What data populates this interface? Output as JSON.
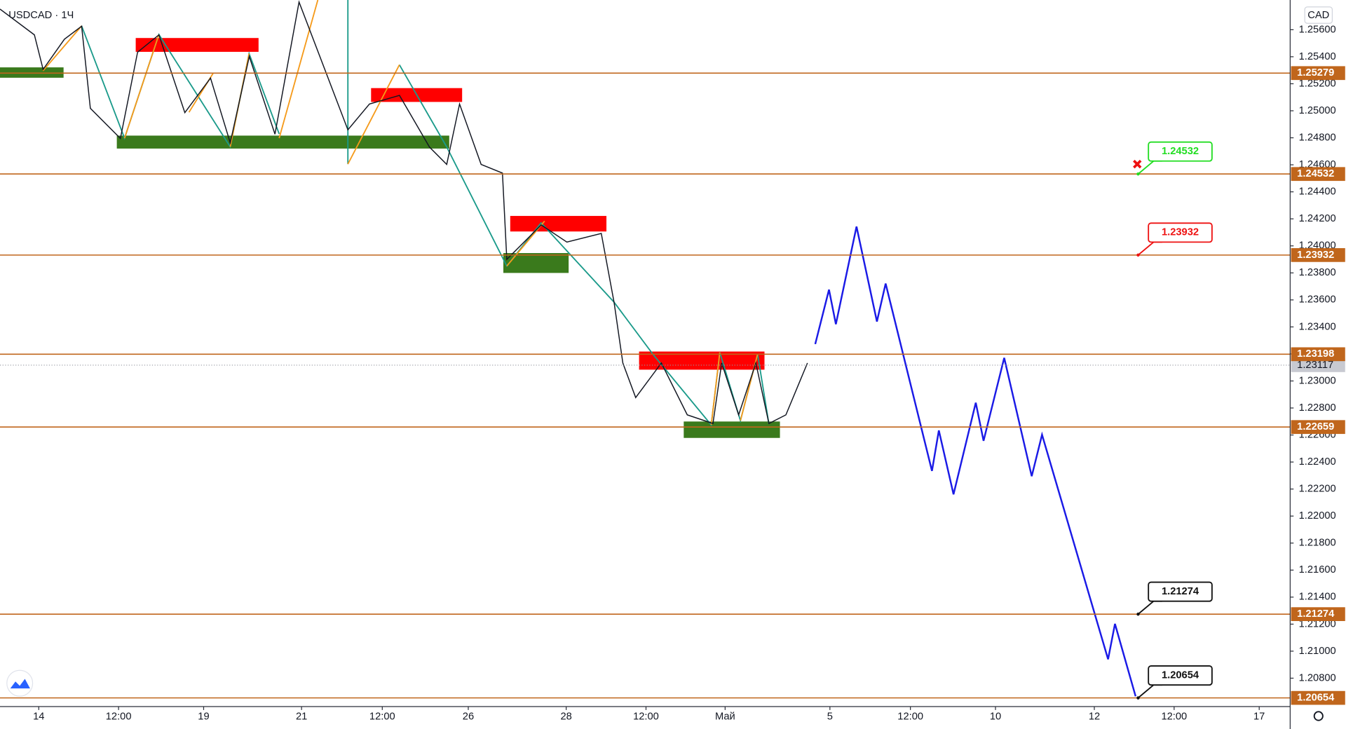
{
  "chart_data": {
    "type": "line",
    "title": "USDCAD · 1Ч",
    "currency": "CAD",
    "xlim": [
      -16.9,
      545.7
    ],
    "ylim": [
      1.2059,
      1.2582
    ],
    "xticks": [
      {
        "value": 0,
        "label": "14"
      },
      {
        "value": 34.8,
        "label": "12:00"
      },
      {
        "value": 71.9,
        "label": "19"
      },
      {
        "value": 114.6,
        "label": "21"
      },
      {
        "value": 149.8,
        "label": "12:00"
      },
      {
        "value": 187.3,
        "label": "26"
      },
      {
        "value": 230.0,
        "label": "28"
      },
      {
        "value": 264.8,
        "label": "12:00"
      },
      {
        "value": 299.3,
        "label": "Май"
      },
      {
        "value": 345.0,
        "label": "5"
      },
      {
        "value": 380.1,
        "label": "12:00"
      },
      {
        "value": 417.2,
        "label": "10"
      },
      {
        "value": 460.3,
        "label": "12"
      },
      {
        "value": 495.1,
        "label": "12:00"
      },
      {
        "value": 532.2,
        "label": "17"
      }
    ],
    "yticks": [
      {
        "value": 1.256,
        "label": "1.25600"
      },
      {
        "value": 1.254,
        "label": "1.25400"
      },
      {
        "value": 1.252,
        "label": "1.25200"
      },
      {
        "value": 1.25,
        "label": "1.25000"
      },
      {
        "value": 1.248,
        "label": "1.24800"
      },
      {
        "value": 1.246,
        "label": "1.24600"
      },
      {
        "value": 1.244,
        "label": "1.24400"
      },
      {
        "value": 1.242,
        "label": "1.24200"
      },
      {
        "value": 1.24,
        "label": "1.24000"
      },
      {
        "value": 1.238,
        "label": "1.23800"
      },
      {
        "value": 1.236,
        "label": "1.23600"
      },
      {
        "value": 1.234,
        "label": "1.23400"
      },
      {
        "value": 1.232,
        "label": "1.23200"
      },
      {
        "value": 1.23,
        "label": "1.23000"
      },
      {
        "value": 1.228,
        "label": "1.22800"
      },
      {
        "value": 1.226,
        "label": "1.22600"
      },
      {
        "value": 1.224,
        "label": "1.22400"
      },
      {
        "value": 1.222,
        "label": "1.22200"
      },
      {
        "value": 1.22,
        "label": "1.22000"
      },
      {
        "value": 1.218,
        "label": "1.21800"
      },
      {
        "value": 1.216,
        "label": "1.21600"
      },
      {
        "value": 1.214,
        "label": "1.21400"
      },
      {
        "value": 1.212,
        "label": "1.21200"
      },
      {
        "value": 1.21,
        "label": "1.21000"
      },
      {
        "value": 1.208,
        "label": "1.20800"
      }
    ],
    "price": {
      "color": "#131722",
      "x": [
        -16.9,
        -1.9,
        1.9,
        11.2,
        18.7,
        22.5,
        35.6,
        43.1,
        52.4,
        63.7,
        74.9,
        83.5,
        91.8,
        103.0,
        113.5,
        134.8,
        144.2,
        157.3,
        170.4,
        177.9,
        183.5,
        192.9,
        202.2,
        204.1,
        219.1,
        230.3,
        245.3,
        250.9,
        254.7,
        260.3,
        271.5,
        282.8,
        294.0,
        297.8,
        305.2,
        312.7,
        318.4,
        325.8,
        335.2
      ],
      "values": [
        1.25753,
        1.25562,
        1.25306,
        1.2553,
        1.25626,
        1.25018,
        1.24795,
        1.25434,
        1.25562,
        1.24986,
        1.25242,
        1.24763,
        1.25402,
        1.24827,
        1.25805,
        1.24859,
        1.2505,
        1.25114,
        1.24731,
        1.24603,
        1.2505,
        1.24603,
        1.24539,
        1.239,
        1.24155,
        1.24028,
        1.24092,
        1.2358,
        1.23133,
        1.22877,
        1.23133,
        1.22749,
        1.22685,
        1.23133,
        1.22749,
        1.23133,
        1.22685,
        1.22749,
        1.23133
      ]
    },
    "forecast": {
      "color": "#1a1ae6",
      "x": [
        338.6,
        344.6,
        347.6,
        356.6,
        365.5,
        369.3,
        389.5,
        392.5,
        398.9,
        408.6,
        412.0,
        421.0,
        433.0,
        437.5,
        466.3,
        469.3,
        478.3
      ],
      "values": [
        1.23273,
        1.23676,
        1.2342,
        1.24143,
        1.2344,
        1.23721,
        1.22334,
        1.22634,
        1.22161,
        1.22839,
        1.22557,
        1.23171,
        1.22295,
        1.22602,
        1.2094,
        1.21202,
        1.20666
      ]
    },
    "levels": {
      "color": "#c0661c",
      "items": [
        {
          "value": 1.25279,
          "label": "1.25279"
        },
        {
          "value": 1.24532,
          "label": "1.24532"
        },
        {
          "value": 1.23932,
          "label": "1.23932"
        },
        {
          "value": 1.23198,
          "label": "1.23198"
        },
        {
          "value": 1.22659,
          "label": "1.22659"
        },
        {
          "value": 1.21274,
          "label": "1.21274"
        },
        {
          "value": 1.20654,
          "label": "1.20654"
        }
      ]
    },
    "current": {
      "value": 1.23117,
      "label": "1.23117"
    },
    "callouts": [
      {
        "value": 1.24532,
        "label": "1.24532",
        "color": "#22dd22"
      },
      {
        "value": 1.23932,
        "label": "1.23932",
        "color": "#ee1111"
      },
      {
        "value": 1.21274,
        "label": "1.21274",
        "color": "#111111"
      },
      {
        "value": 1.20654,
        "label": "1.20654",
        "color": "#111111"
      }
    ]
  }
}
